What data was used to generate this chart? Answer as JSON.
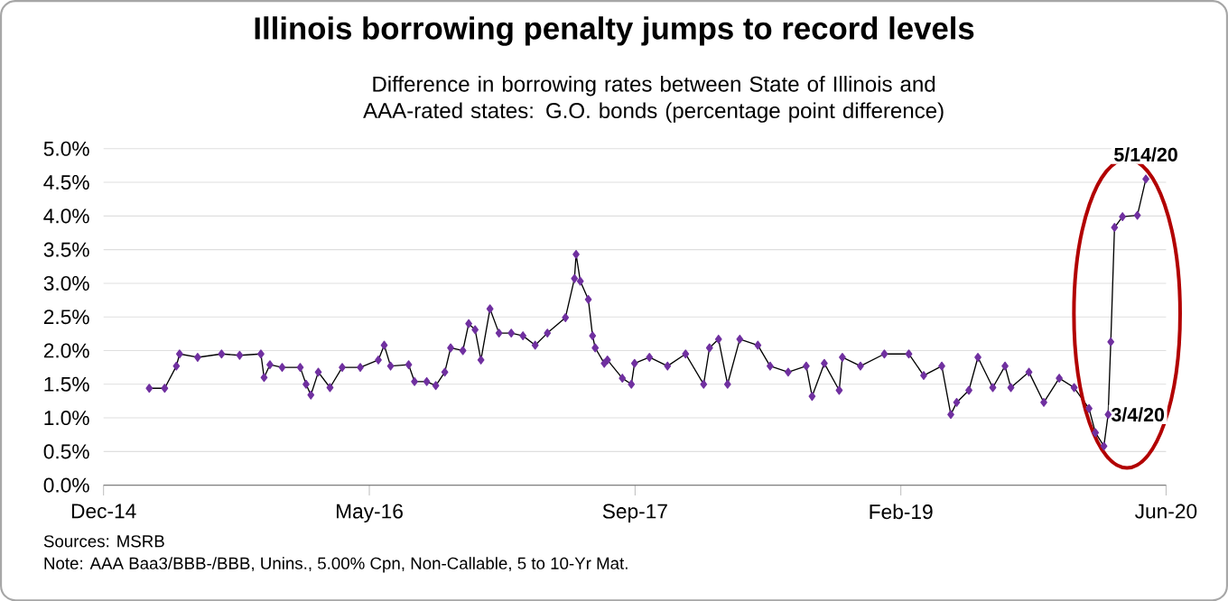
{
  "chart_data": {
    "type": "line",
    "title": "Illinois borrowing penalty jumps to record levels",
    "subtitle": "Difference in borrowing rates between State of Illinois and AAA-rated states: G.O. bonds (percentage point difference)",
    "x": [
      "2015-03-27",
      "2015-04-25",
      "2015-05-17",
      "2015-05-23",
      "2015-06-26",
      "2015-08-10",
      "2015-09-13",
      "2015-10-23",
      "2015-10-29",
      "2015-11-09",
      "2015-12-02",
      "2016-01-05",
      "2016-01-16",
      "2016-01-25",
      "2016-02-08",
      "2016-03-01",
      "2016-03-24",
      "2016-04-27",
      "2016-05-31",
      "2016-06-11",
      "2016-06-23",
      "2016-07-27",
      "2016-08-07",
      "2016-08-30",
      "2016-09-16",
      "2016-10-03",
      "2016-10-14",
      "2016-11-06",
      "2016-11-17",
      "2016-11-29",
      "2016-12-10",
      "2016-12-27",
      "2017-01-13",
      "2017-02-05",
      "2017-02-27",
      "2017-03-22",
      "2017-04-14",
      "2017-05-18",
      "2017-06-04",
      "2017-06-07",
      "2017-06-15",
      "2017-06-30",
      "2017-07-08",
      "2017-07-13",
      "2017-07-30",
      "2017-08-05",
      "2017-09-02",
      "2017-09-19",
      "2017-09-25",
      "2017-10-23",
      "2017-11-26",
      "2017-12-30",
      "2018-02-02",
      "2018-02-13",
      "2018-03-02",
      "2018-03-19",
      "2018-04-11",
      "2018-05-15",
      "2018-06-07",
      "2018-07-11",
      "2018-08-14",
      "2018-08-25",
      "2018-09-17",
      "2018-10-15",
      "2018-10-21",
      "2018-11-24",
      "2019-01-08",
      "2019-02-23",
      "2019-03-23",
      "2019-04-26",
      "2019-05-13",
      "2019-05-24",
      "2019-06-16",
      "2019-07-03",
      "2019-07-31",
      "2019-08-23",
      "2019-09-03",
      "2019-10-07",
      "2019-11-04",
      "2019-12-03",
      "2019-12-31",
      "2020-01-28",
      "2020-02-09",
      "2020-02-25",
      "2020-03-04",
      "2020-03-09",
      "2020-03-16",
      "2020-03-31",
      "2020-04-28",
      "2020-05-14"
    ],
    "values": [
      1.44,
      1.44,
      1.77,
      1.95,
      1.9,
      1.95,
      1.93,
      1.95,
      1.6,
      1.79,
      1.75,
      1.75,
      1.5,
      1.34,
      1.68,
      1.45,
      1.75,
      1.75,
      1.86,
      2.08,
      1.77,
      1.79,
      1.54,
      1.54,
      1.48,
      1.68,
      2.04,
      2.0,
      2.4,
      2.31,
      1.86,
      2.62,
      2.26,
      2.26,
      2.22,
      2.08,
      2.26,
      2.49,
      3.07,
      3.43,
      3.03,
      2.76,
      2.22,
      2.04,
      1.81,
      1.86,
      1.59,
      1.5,
      1.81,
      1.9,
      1.77,
      1.95,
      1.5,
      2.04,
      2.17,
      1.5,
      2.17,
      2.08,
      1.77,
      1.68,
      1.77,
      1.32,
      1.81,
      1.41,
      1.9,
      1.77,
      1.95,
      1.95,
      1.63,
      1.77,
      1.05,
      1.23,
      1.41,
      1.9,
      1.45,
      1.77,
      1.45,
      1.68,
      1.23,
      1.59,
      1.45,
      1.14,
      0.78,
      0.58,
      1.05,
      2.13,
      3.83,
      3.99,
      4.01,
      4.55
    ],
    "color": "#7030a0",
    "marker": "diamond",
    "grid": "y",
    "xlim": [
      "2014-12-31",
      "2020-06-21"
    ],
    "xticks": [
      {
        "value": "2014-12-31",
        "label": "Dec-14"
      },
      {
        "value": "2016-05-14",
        "label": "May-16"
      },
      {
        "value": "2017-09-26",
        "label": "Sep-17"
      },
      {
        "value": "2019-02-08",
        "label": "Feb-19"
      },
      {
        "value": "2020-06-21",
        "label": "Jun-20"
      }
    ],
    "ylim": [
      0,
      5
    ],
    "yticks": [
      {
        "value": 0,
        "label": "0.0%"
      },
      {
        "value": 0.5,
        "label": "0.5%"
      },
      {
        "value": 1,
        "label": "1.0%"
      },
      {
        "value": 1.5,
        "label": "1.5%"
      },
      {
        "value": 2,
        "label": "2.0%"
      },
      {
        "value": 2.5,
        "label": "2.5%"
      },
      {
        "value": 3,
        "label": "3.0%"
      },
      {
        "value": 3.5,
        "label": "3.5%"
      },
      {
        "value": 4,
        "label": "4.0%"
      },
      {
        "value": 4.5,
        "label": "4.5%"
      },
      {
        "value": 5,
        "label": "5.0%"
      }
    ],
    "annotations": [
      {
        "text": "5/14/20",
        "x": "2020-05-14",
        "y": 4.55
      },
      {
        "text": "3/4/20",
        "x": "2020-03-04",
        "y": 1.05
      },
      "Sources: MSRB",
      "Note: AAA Baa3/BBB-/BBB, Unins., 5.00% Cpn, Non-Callable, 5 to 10-Yr Mat."
    ]
  }
}
